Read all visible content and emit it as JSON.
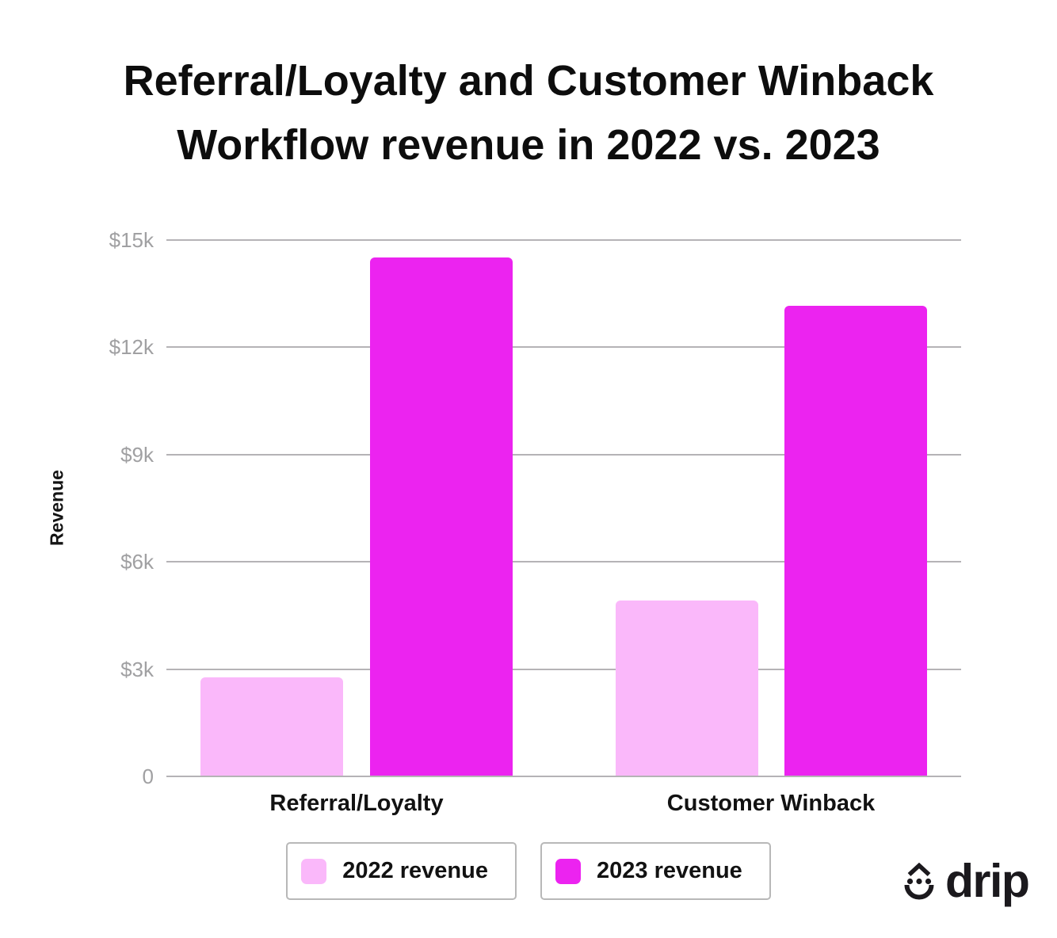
{
  "title": {
    "line1": "Referral/Loyalty and Customer Winback",
    "line2": "Workflow revenue in 2022 vs. 2023"
  },
  "chart_data": {
    "type": "bar",
    "title": "Referral/Loyalty and Customer Winback Workflow revenue in 2022 vs. 2023",
    "xlabel": "",
    "ylabel": "Revenue",
    "categories": [
      "Referral/Loyalty",
      "Customer Winback"
    ],
    "series": [
      {
        "name": "2022 revenue",
        "color": "#FAB8FA",
        "values": [
          2750,
          4900
        ]
      },
      {
        "name": "2023 revenue",
        "color": "#EC23F0",
        "values": [
          14500,
          13150
        ]
      }
    ],
    "ylim": [
      0,
      15000
    ],
    "y_ticks": [
      {
        "value": 0,
        "label": "0"
      },
      {
        "value": 3000,
        "label": "$3k"
      },
      {
        "value": 6000,
        "label": "$6k"
      },
      {
        "value": 9000,
        "label": "$9k"
      },
      {
        "value": 12000,
        "label": "$12k"
      },
      {
        "value": 15000,
        "label": "$15k"
      }
    ],
    "grid": true,
    "legend_position": "bottom"
  },
  "branding": {
    "logo_text": "drip"
  },
  "colors": {
    "series_2022": "#FAB8FA",
    "series_2023": "#EC23F0",
    "gridline": "#b5b3b6",
    "tick_text": "#a0a0a2",
    "text": "#121212",
    "legend_border": "#b8b8b8",
    "logo": "#1b191d",
    "background": "#ffffff"
  }
}
